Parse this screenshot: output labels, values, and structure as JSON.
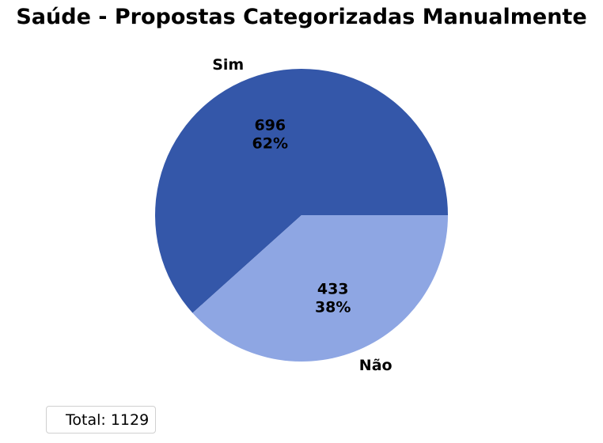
{
  "chart_data": {
    "type": "pie",
    "title": "Saúde - Propostas Categorizadas Manualmente",
    "categories": [
      "Sim",
      "Não"
    ],
    "values": [
      696,
      433
    ],
    "percent_labels": [
      "62%",
      "38%"
    ],
    "colors": [
      "#3457a9",
      "#8ea6e3"
    ],
    "legend": {
      "placement": "lower-left",
      "text": "Total: 1129"
    }
  }
}
